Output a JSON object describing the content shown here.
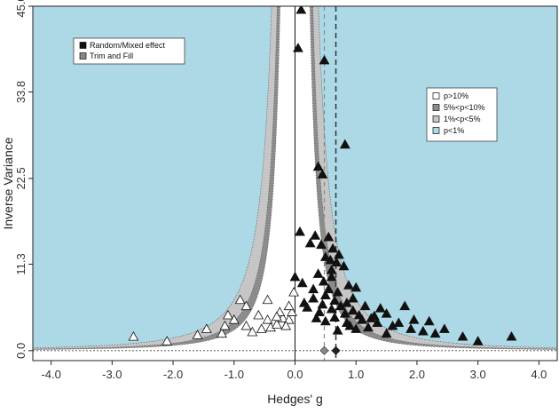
{
  "chart_data": {
    "type": "scatter",
    "subtype": "contour-enhanced funnel plot",
    "xlabel": "Hedges' g",
    "ylabel": "Inverse Variance",
    "xlim": [
      -4.3,
      4.3
    ],
    "ylim": [
      -1.3,
      45.0
    ],
    "x_ticks": [
      "-4.0",
      "-3.0",
      "-2.0",
      "-1.0",
      "0.0",
      "1.0",
      "2.0",
      "3.0",
      "4.0"
    ],
    "x_tick_values": [
      -4,
      -3,
      -2,
      -1,
      0,
      1,
      2,
      3,
      4
    ],
    "y_ticks": [
      "0.0",
      "11.3",
      "22.5",
      "33.8",
      "45.0"
    ],
    "y_tick_values": [
      0,
      11.3,
      22.5,
      33.8,
      45.0
    ],
    "grid": false,
    "observed_pooled_effect": 0.67,
    "adjusted_pooled_effect": 0.48,
    "colors": {
      "p_gt_10": "#ffffff",
      "p_5_10": "#8c8c8c",
      "p_1_5": "#c6c6c6",
      "p_lt_1": "#add8e6",
      "observed_marker": "#111111",
      "imputed_marker": "#ffffff",
      "pooled_observed": "#333333",
      "pooled_adjusted": "#888888"
    },
    "legends": [
      {
        "position": "top-left",
        "entries": [
          {
            "label": "Random/Mixed effect",
            "color": "#111111"
          },
          {
            "label": "Trim and Fill",
            "color": "#888888"
          }
        ]
      },
      {
        "position": "right",
        "entries": [
          {
            "label": "p>10%",
            "color": "#ffffff"
          },
          {
            "label": "5%<p<10%",
            "color": "#8c8c8c"
          },
          {
            "label": "1%<p<5%",
            "color": "#c6c6c6"
          },
          {
            "label": "p<1%",
            "color": "#add8e6"
          }
        ]
      }
    ],
    "series": [
      {
        "name": "Random/Mixed effect",
        "marker": "triangle-filled",
        "points": [
          [
            0.1,
            44.5
          ],
          [
            0.05,
            39.5
          ],
          [
            0.48,
            37.9
          ],
          [
            0.82,
            26.9
          ],
          [
            0.38,
            24.0
          ],
          [
            0.45,
            23.0
          ],
          [
            0.08,
            15.5
          ],
          [
            0.33,
            15.0
          ],
          [
            0.55,
            14.8
          ],
          [
            0.25,
            14.0
          ],
          [
            0.43,
            13.8
          ],
          [
            0.62,
            13.3
          ],
          [
            0.72,
            12.5
          ],
          [
            0.5,
            12.2
          ],
          [
            0.58,
            11.8
          ],
          [
            0.68,
            11.5
          ],
          [
            0.8,
            11.0
          ],
          [
            0.6,
            10.5
          ],
          [
            0.38,
            10.0
          ],
          [
            0.6,
            9.6
          ],
          [
            0.47,
            9.0
          ],
          [
            0.12,
            8.8
          ],
          [
            0.88,
            8.5
          ],
          [
            0.55,
            8.0
          ],
          [
            0.7,
            7.6
          ],
          [
            1.0,
            8.2
          ],
          [
            0.5,
            7.2
          ],
          [
            0.3,
            6.8
          ],
          [
            0.65,
            6.5
          ],
          [
            0.85,
            6.2
          ],
          [
            0.45,
            6.0
          ],
          [
            0.75,
            5.8
          ],
          [
            1.15,
            5.8
          ],
          [
            0.2,
            5.6
          ],
          [
            0.6,
            5.4
          ],
          [
            0.95,
            5.2
          ],
          [
            1.4,
            5.5
          ],
          [
            1.8,
            5.8
          ],
          [
            0.4,
            5.0
          ],
          [
            0.82,
            4.8
          ],
          [
            1.05,
            4.6
          ],
          [
            1.3,
            4.5
          ],
          [
            0.65,
            4.3
          ],
          [
            1.5,
            4.8
          ],
          [
            1.1,
            4.0
          ],
          [
            0.5,
            3.8
          ],
          [
            0.85,
            3.6
          ],
          [
            1.35,
            3.6
          ],
          [
            1.95,
            4.0
          ],
          [
            2.2,
            3.8
          ],
          [
            0.9,
            3.2
          ],
          [
            1.6,
            3.2
          ],
          [
            1.2,
            3.0
          ],
          [
            1.9,
            2.8
          ],
          [
            2.45,
            2.8
          ],
          [
            2.1,
            2.5
          ],
          [
            2.3,
            2.2
          ],
          [
            1.5,
            2.2
          ],
          [
            2.75,
            1.8
          ],
          [
            3.0,
            1.2
          ],
          [
            3.55,
            1.8
          ],
          [
            0.7,
            2.6
          ],
          [
            1.0,
            2.8
          ],
          [
            0.35,
            4.2
          ],
          [
            0.15,
            6.2
          ],
          [
            0.3,
            8.0
          ],
          [
            0.95,
            6.8
          ],
          [
            1.25,
            4.2
          ],
          [
            1.7,
            3.6
          ],
          [
            0.0,
            9.6
          ]
        ]
      },
      {
        "name": "Trim and Fill",
        "marker": "triangle-open",
        "points": [
          [
            -2.65,
            1.8
          ],
          [
            -2.1,
            1.2
          ],
          [
            -1.6,
            2.0
          ],
          [
            -1.45,
            2.8
          ],
          [
            -1.2,
            2.2
          ],
          [
            -1.15,
            3.2
          ],
          [
            -1.0,
            4.0
          ],
          [
            -0.8,
            3.2
          ],
          [
            -0.7,
            2.4
          ],
          [
            -0.55,
            2.8
          ],
          [
            -0.45,
            4.0
          ],
          [
            -0.4,
            3.0
          ],
          [
            -0.3,
            3.4
          ],
          [
            -0.2,
            4.2
          ],
          [
            -0.1,
            4.0
          ],
          [
            -0.05,
            5.0
          ],
          [
            -0.1,
            5.8
          ],
          [
            -0.25,
            5.0
          ],
          [
            -0.45,
            6.6
          ],
          [
            -0.8,
            5.8
          ],
          [
            -0.9,
            6.6
          ],
          [
            -1.1,
            4.6
          ],
          [
            -0.6,
            4.6
          ],
          [
            -0.15,
            3.2
          ],
          [
            -0.02,
            7.6
          ],
          [
            -0.3,
            4.4
          ]
        ]
      }
    ]
  }
}
